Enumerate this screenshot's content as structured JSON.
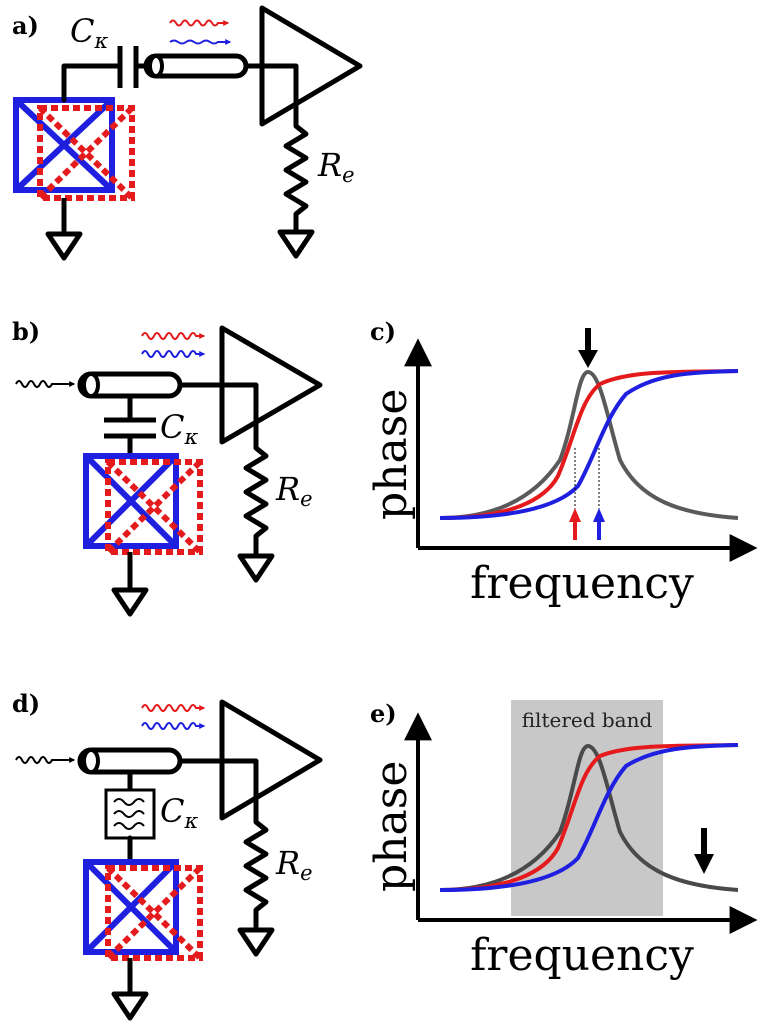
{
  "panels": {
    "a": "a)",
    "b": "b)",
    "c": "c)",
    "d": "d)",
    "e": "e)"
  },
  "symbols": {
    "capacitor": "C",
    "capacitor_subscript": "κ",
    "resistor": "R",
    "resistor_subscript": "e"
  },
  "plots": {
    "x_label": "frequency",
    "y_label": "phase",
    "band_label": "filtered band"
  },
  "colors": {
    "red": "#e41a1c",
    "blue": "#1f1fe0",
    "gray_curve": "#5a5a5a",
    "band": "#c8c8c8",
    "ink": "#000000"
  },
  "icons": {
    "qubit": "squid-box-icon",
    "ground": "ground-symbol-icon",
    "amplifier": "amplifier-triangle-icon",
    "signal": "wavy-arrow-icon",
    "filter": "bandpass-filter-icon",
    "marker": "down-arrow-icon"
  }
}
